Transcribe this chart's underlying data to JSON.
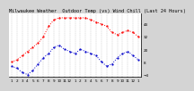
{
  "title": "Milwaukee Weather  Outdoor Temp (vs) Wind Chill (Last 24 Hours)",
  "bg_color": "#d4d4d4",
  "plot_bg_color": "#ffffff",
  "temp_color": "#ff0000",
  "wind_color": "#0000cc",
  "temp_values": [
    8,
    10,
    14,
    18,
    22,
    26,
    32,
    42,
    48,
    50,
    50,
    50,
    50,
    50,
    50,
    48,
    46,
    44,
    42,
    36,
    34,
    36,
    38,
    36,
    32
  ],
  "wind_values": [
    4,
    2,
    -2,
    -4,
    0,
    6,
    12,
    16,
    22,
    24,
    20,
    18,
    16,
    20,
    18,
    16,
    14,
    8,
    4,
    6,
    12,
    16,
    18,
    14,
    10
  ],
  "x_labels": [
    "1",
    "2",
    "3",
    "4",
    "5",
    "6",
    "7",
    "8",
    "9",
    "10",
    "11",
    "12",
    "1",
    "2",
    "3",
    "4",
    "5",
    "6",
    "7",
    "8",
    "9",
    "10",
    "11",
    "12",
    "1"
  ],
  "ylim": [
    -6,
    54
  ],
  "yticks": [
    -4,
    8,
    20,
    32,
    44
  ],
  "title_fontsize": 3.8,
  "tick_fontsize": 3.0,
  "line_width": 0.7,
  "marker_size": 1.2
}
